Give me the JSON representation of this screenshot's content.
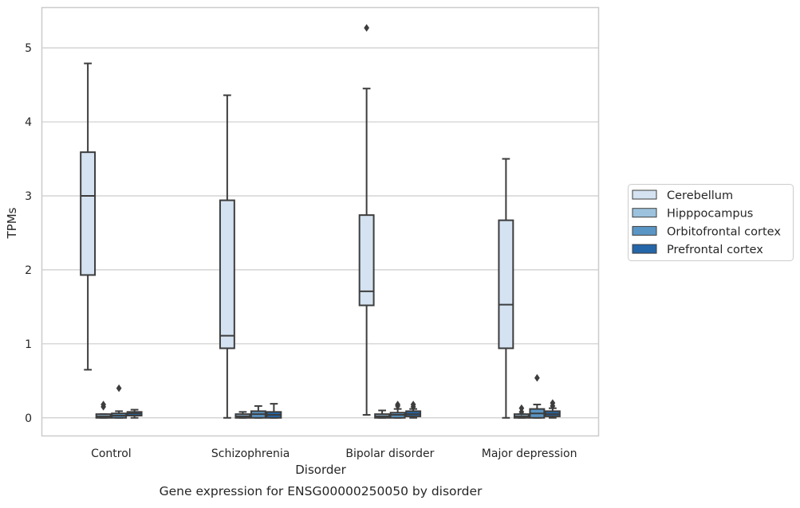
{
  "chart_data": {
    "type": "box",
    "title": "Gene expression for ENSG00000250050 by disorder",
    "xlabel": "Disorder",
    "ylabel": "TPMs",
    "ylim": [
      -0.25,
      5.55
    ],
    "yticks": [
      0,
      1,
      2,
      3,
      4,
      5
    ],
    "categories": [
      "Control",
      "Schizophrenia",
      "Bipolar disorder",
      "Major depression"
    ],
    "grid": true,
    "legend_position": "right",
    "series": [
      {
        "name": "Cerebellum",
        "color": "#d4e2f1",
        "boxes": [
          {
            "whisker_low": 0.65,
            "q1": 1.93,
            "median": 3.0,
            "q3": 3.59,
            "whisker_high": 4.79,
            "outliers": []
          },
          {
            "whisker_low": 0.0,
            "q1": 0.94,
            "median": 1.11,
            "q3": 2.94,
            "whisker_high": 4.36,
            "outliers": []
          },
          {
            "whisker_low": 0.04,
            "q1": 1.52,
            "median": 1.71,
            "q3": 2.74,
            "whisker_high": 4.45,
            "outliers": [
              5.27
            ]
          },
          {
            "whisker_low": 0.0,
            "q1": 0.94,
            "median": 1.53,
            "q3": 2.67,
            "whisker_high": 3.5,
            "outliers": []
          }
        ]
      },
      {
        "name": "Hipppocampus",
        "color": "#9cc2dd",
        "boxes": [
          {
            "whisker_low": 0.0,
            "q1": 0.0,
            "median": 0.02,
            "q3": 0.05,
            "whisker_high": 0.05,
            "outliers": [
              0.15,
              0.18
            ]
          },
          {
            "whisker_low": 0.0,
            "q1": 0.0,
            "median": 0.02,
            "q3": 0.05,
            "whisker_high": 0.08,
            "outliers": []
          },
          {
            "whisker_low": 0.0,
            "q1": 0.0,
            "median": 0.02,
            "q3": 0.05,
            "whisker_high": 0.1,
            "outliers": []
          },
          {
            "whisker_low": 0.0,
            "q1": 0.0,
            "median": 0.02,
            "q3": 0.05,
            "whisker_high": 0.05,
            "outliers": [
              0.08,
              0.13
            ]
          }
        ]
      },
      {
        "name": "Orbitofrontal cortex",
        "color": "#5a96c5",
        "boxes": [
          {
            "whisker_low": 0.0,
            "q1": 0.0,
            "median": 0.03,
            "q3": 0.06,
            "whisker_high": 0.09,
            "outliers": [
              0.4
            ]
          },
          {
            "whisker_low": 0.0,
            "q1": 0.0,
            "median": 0.05,
            "q3": 0.09,
            "whisker_high": 0.16,
            "outliers": []
          },
          {
            "whisker_low": 0.0,
            "q1": 0.0,
            "median": 0.04,
            "q3": 0.07,
            "whisker_high": 0.12,
            "outliers": [
              0.16,
              0.18
            ]
          },
          {
            "whisker_low": 0.0,
            "q1": 0.0,
            "median": 0.06,
            "q3": 0.12,
            "whisker_high": 0.18,
            "outliers": [
              0.54
            ]
          }
        ]
      },
      {
        "name": "Prefrontal cortex",
        "color": "#2566a8",
        "boxes": [
          {
            "whisker_low": 0.0,
            "q1": 0.03,
            "median": 0.06,
            "q3": 0.08,
            "whisker_high": 0.11,
            "outliers": []
          },
          {
            "whisker_low": 0.0,
            "q1": 0.0,
            "median": 0.04,
            "q3": 0.08,
            "whisker_high": 0.19,
            "outliers": []
          },
          {
            "whisker_low": 0.0,
            "q1": 0.02,
            "median": 0.05,
            "q3": 0.09,
            "whisker_high": 0.12,
            "outliers": [
              0.15,
              0.18
            ]
          },
          {
            "whisker_low": 0.0,
            "q1": 0.02,
            "median": 0.05,
            "q3": 0.09,
            "whisker_high": 0.13,
            "outliers": [
              0.16,
              0.2
            ]
          }
        ]
      }
    ]
  }
}
